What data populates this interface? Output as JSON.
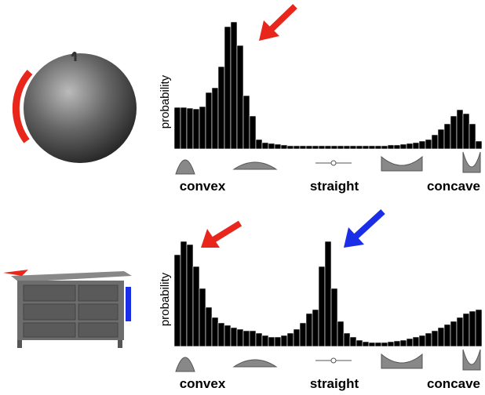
{
  "chart_data": [
    {
      "type": "bar",
      "ylabel": "probability",
      "color": "#000000",
      "ylim": [
        0,
        170
      ],
      "categories": [
        null,
        null,
        null,
        null,
        "convex",
        null,
        null,
        null,
        null,
        null,
        null,
        null,
        null,
        null,
        null,
        null,
        null,
        null,
        null,
        null,
        null,
        null,
        null,
        null,
        null,
        "straight",
        null,
        null,
        null,
        null,
        null,
        null,
        null,
        null,
        null,
        null,
        null,
        null,
        null,
        null,
        null,
        null,
        null,
        null,
        "concave",
        null,
        null,
        null,
        null
      ],
      "values": [
        53,
        53,
        52,
        51,
        54,
        72,
        78,
        105,
        156,
        162,
        132,
        68,
        42,
        12,
        8,
        7,
        6,
        5,
        4,
        4,
        4,
        4,
        4,
        4,
        4,
        4,
        4,
        4,
        4,
        4,
        4,
        4,
        4,
        4,
        5,
        5,
        6,
        7,
        8,
        10,
        12,
        18,
        25,
        32,
        42,
        50,
        45,
        32,
        10
      ]
    },
    {
      "type": "bar",
      "ylabel": "probability",
      "color": "#000000",
      "ylim": [
        0,
        170
      ],
      "categories": [
        null,
        null,
        null,
        null,
        "convex",
        null,
        null,
        null,
        null,
        null,
        null,
        null,
        null,
        null,
        null,
        null,
        null,
        null,
        null,
        null,
        null,
        null,
        null,
        null,
        null,
        "straight",
        null,
        null,
        null,
        null,
        null,
        null,
        null,
        null,
        null,
        null,
        null,
        null,
        null,
        null,
        null,
        null,
        null,
        null,
        "concave",
        null,
        null,
        null,
        null
      ],
      "values": [
        117,
        134,
        130,
        102,
        74,
        50,
        37,
        30,
        27,
        24,
        22,
        20,
        20,
        17,
        14,
        12,
        12,
        14,
        17,
        22,
        30,
        42,
        47,
        102,
        134,
        74,
        32,
        17,
        12,
        8,
        6,
        5,
        5,
        5,
        6,
        7,
        8,
        10,
        12,
        14,
        17,
        20,
        24,
        28,
        32,
        37,
        42,
        45,
        47
      ]
    }
  ]
}
